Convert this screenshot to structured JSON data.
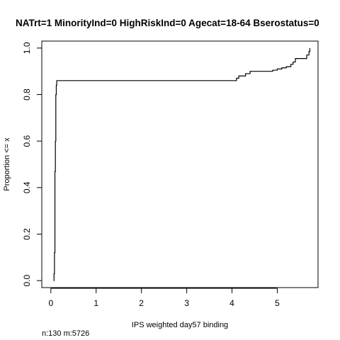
{
  "chart_data": {
    "type": "line",
    "subtype": "empirical-cdf-step",
    "title": "NATrt=1 MinorityInd=0 HighRiskInd=0 Agecat=18-64 Bserostatus=0",
    "xlabel": "IPS weighted day57 binding",
    "ylabel": "Proportion <= x",
    "footnote": "n:130 m:5726",
    "xlim": [
      -0.2,
      5.9
    ],
    "ylim": [
      -0.03,
      1.03
    ],
    "x_ticks": [
      0,
      1,
      2,
      3,
      4,
      5
    ],
    "x_tick_labels": [
      "0",
      "1",
      "2",
      "3",
      "4",
      "5"
    ],
    "y_ticks": [
      0.0,
      0.2,
      0.4,
      0.6,
      0.8,
      1.0
    ],
    "y_tick_labels": [
      "0.0",
      "0.2",
      "0.4",
      "0.6",
      "0.8",
      "1.0"
    ],
    "grid": false,
    "legend": "none",
    "color": "#000000",
    "series": [
      {
        "x": [
          0.06,
          0.07,
          0.08,
          0.09,
          0.1,
          0.11,
          0.12,
          0.13,
          4.05,
          4.1,
          4.15,
          4.2,
          4.3,
          4.4,
          4.8,
          4.9,
          5.0,
          5.1,
          5.2,
          5.3,
          5.35,
          5.4,
          5.6,
          5.65,
          5.7,
          5.72
        ],
        "y": [
          0.0,
          0.03,
          0.12,
          0.47,
          0.6,
          0.8,
          0.84,
          0.86,
          0.86,
          0.87,
          0.88,
          0.88,
          0.89,
          0.9,
          0.9,
          0.905,
          0.91,
          0.915,
          0.92,
          0.93,
          0.94,
          0.955,
          0.955,
          0.97,
          0.985,
          1.0
        ]
      }
    ]
  }
}
